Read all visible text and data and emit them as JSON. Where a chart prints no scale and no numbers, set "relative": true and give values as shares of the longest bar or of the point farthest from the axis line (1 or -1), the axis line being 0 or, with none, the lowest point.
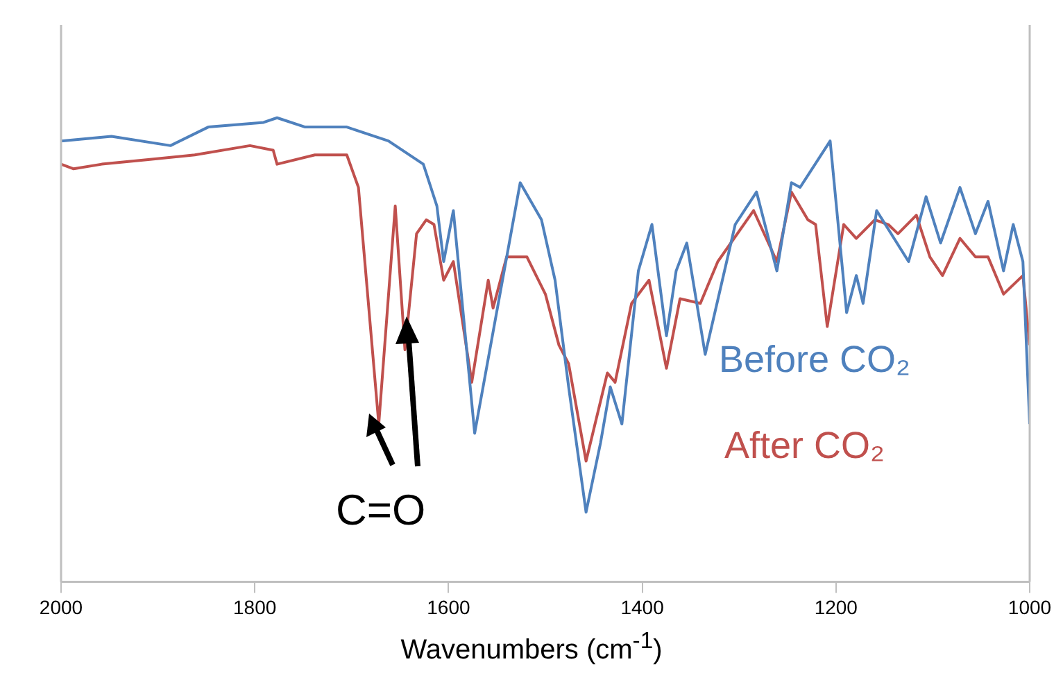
{
  "chart_data": {
    "type": "line",
    "relative": true,
    "xlabel": "Wavenumbers (cm$^{-1}$)",
    "xlim": [
      2000,
      1000
    ],
    "xticks": [
      2000,
      1800,
      1600,
      1400,
      1200,
      1000
    ],
    "annotations": [
      "C=O"
    ],
    "series": [
      {
        "name": "Before CO₂",
        "color": "#4f81bd",
        "x": [
          2000,
          1948,
          1887,
          1848,
          1791,
          1777,
          1748,
          1705,
          1662,
          1626,
          1612,
          1605,
          1595,
          1573,
          1526,
          1504,
          1490,
          1476,
          1458,
          1443,
          1433,
          1421,
          1404,
          1390,
          1375,
          1365,
          1354,
          1335,
          1304,
          1282,
          1261,
          1246,
          1237,
          1206,
          1189,
          1179,
          1172,
          1158,
          1125,
          1107,
          1092,
          1072,
          1056,
          1043,
          1027,
          1017,
          1007,
          1000
        ],
        "values": [
          0.95,
          0.96,
          0.94,
          0.98,
          0.99,
          1.0,
          0.98,
          0.98,
          0.95,
          0.9,
          0.81,
          0.69,
          0.8,
          0.32,
          0.86,
          0.78,
          0.65,
          0.42,
          0.15,
          0.3,
          0.42,
          0.34,
          0.67,
          0.77,
          0.53,
          0.67,
          0.73,
          0.49,
          0.77,
          0.84,
          0.67,
          0.86,
          0.85,
          0.95,
          0.58,
          0.66,
          0.6,
          0.8,
          0.69,
          0.83,
          0.73,
          0.85,
          0.75,
          0.82,
          0.67,
          0.77,
          0.69,
          0.34
        ]
      },
      {
        "name": "After CO₂",
        "color": "#c0504d",
        "x": [
          2000,
          1987,
          1958,
          1910,
          1862,
          1805,
          1781,
          1777,
          1738,
          1705,
          1693,
          1672,
          1655,
          1645,
          1633,
          1623,
          1615,
          1605,
          1595,
          1576,
          1559,
          1554,
          1540,
          1519,
          1500,
          1486,
          1476,
          1458,
          1436,
          1428,
          1411,
          1393,
          1375,
          1361,
          1340,
          1322,
          1285,
          1261,
          1246,
          1229,
          1221,
          1209,
          1192,
          1179,
          1160,
          1146,
          1136,
          1117,
          1103,
          1090,
          1072,
          1056,
          1043,
          1027,
          1007,
          1000
        ],
        "values": [
          0.9,
          0.89,
          0.9,
          0.91,
          0.92,
          0.94,
          0.93,
          0.9,
          0.92,
          0.92,
          0.85,
          0.34,
          0.81,
          0.5,
          0.75,
          0.78,
          0.77,
          0.65,
          0.69,
          0.43,
          0.65,
          0.59,
          0.7,
          0.7,
          0.62,
          0.51,
          0.47,
          0.26,
          0.45,
          0.43,
          0.6,
          0.65,
          0.46,
          0.61,
          0.6,
          0.69,
          0.8,
          0.69,
          0.84,
          0.78,
          0.77,
          0.55,
          0.77,
          0.74,
          0.78,
          0.77,
          0.75,
          0.79,
          0.7,
          0.66,
          0.74,
          0.7,
          0.7,
          0.62,
          0.66,
          0.51
        ]
      }
    ]
  }
}
